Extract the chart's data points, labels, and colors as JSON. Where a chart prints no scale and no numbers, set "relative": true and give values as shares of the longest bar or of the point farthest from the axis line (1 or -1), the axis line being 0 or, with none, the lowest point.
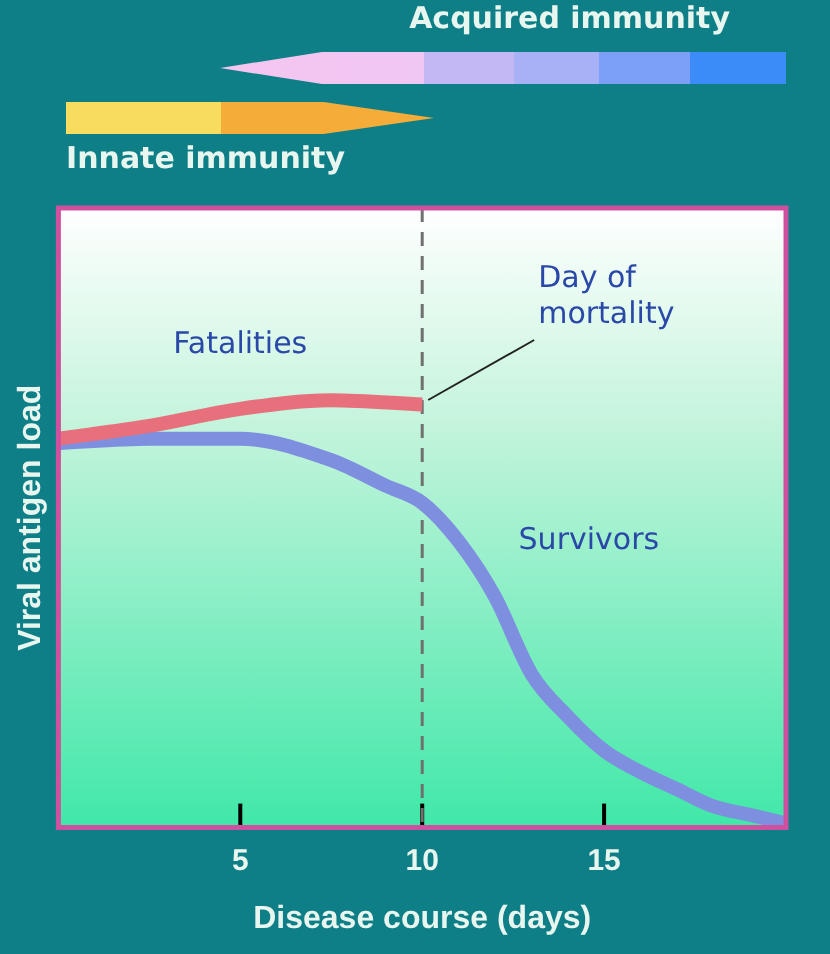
{
  "chart_data": {
    "type": "line",
    "relative": true,
    "xlabel": "Disease course (days)",
    "ylabel": "Viral antigen load",
    "xlim": [
      0,
      20
    ],
    "xticks": [
      5,
      10,
      15
    ],
    "series": [
      {
        "name": "Fatalities",
        "color": "#e8707c",
        "x": [
          0,
          2.5,
          5,
          7.5,
          10
        ],
        "values": [
          0.91,
          0.94,
          0.98,
          1,
          0.99
        ]
      },
      {
        "name": "Survivors",
        "color": "#7f8fe0",
        "x": [
          0,
          2.5,
          5,
          7.5,
          9,
          10,
          11,
          12,
          13,
          14,
          15,
          16,
          17,
          18,
          19,
          20
        ],
        "values": [
          0.9,
          0.91,
          0.91,
          0.86,
          0.8,
          0.76,
          0.67,
          0.54,
          0.36,
          0.26,
          0.18,
          0.13,
          0.09,
          0.05,
          0.03,
          0.01
        ]
      }
    ],
    "ref_lines": [
      {
        "axis": "x",
        "value": 10,
        "label": "Day of mortality",
        "color": "#707070",
        "line_style": "dashed"
      }
    ],
    "annotations": [
      "Acquired immunity",
      "Innate immunity"
    ],
    "grid": false,
    "legend": false,
    "marker": "none",
    "line_style": "solid"
  }
}
